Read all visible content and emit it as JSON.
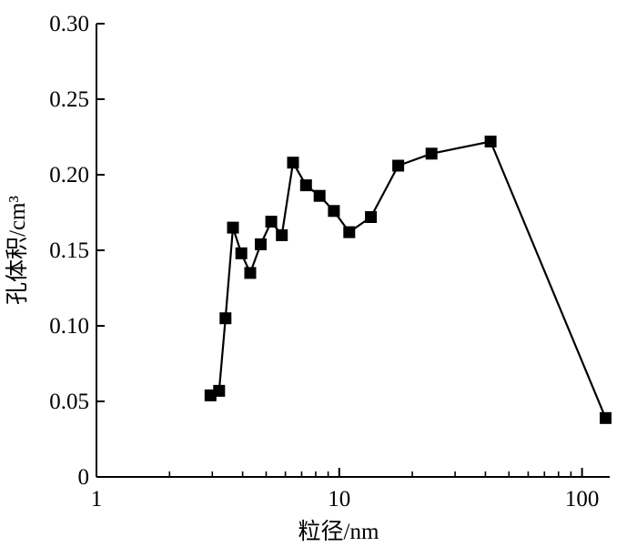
{
  "chart_data": {
    "type": "line",
    "title": "",
    "xlabel": "粒径/nm",
    "ylabel": "孔体积/cm³",
    "xscale": "log",
    "xlim": [
      1,
      130
    ],
    "ylim": [
      0,
      0.3
    ],
    "xticks": [
      1,
      10,
      100
    ],
    "xtick_labels": [
      "1",
      "10",
      "100"
    ],
    "yticks": [
      0,
      0.05,
      0.1,
      0.15,
      0.2,
      0.25,
      0.3
    ],
    "ytick_labels": [
      "0",
      "0.05",
      "0.10",
      "0.15",
      "0.20",
      "0.25",
      "0.30"
    ],
    "grid": false,
    "legend": "none",
    "marker": "square",
    "series": [
      {
        "color": "#000000",
        "x": [
          2.95,
          3.2,
          3.4,
          3.65,
          3.95,
          4.3,
          4.75,
          5.25,
          5.8,
          6.45,
          7.3,
          8.3,
          9.5,
          11.0,
          13.5,
          17.5,
          24.0,
          42.0,
          125.0
        ],
        "y": [
          0.054,
          0.057,
          0.105,
          0.165,
          0.148,
          0.135,
          0.154,
          0.169,
          0.16,
          0.208,
          0.193,
          0.186,
          0.176,
          0.162,
          0.172,
          0.206,
          0.214,
          0.222,
          0.039
        ]
      }
    ]
  }
}
